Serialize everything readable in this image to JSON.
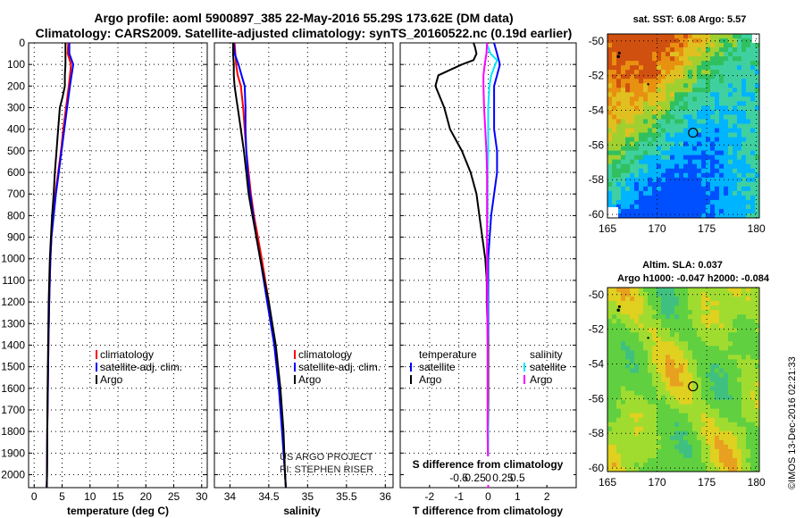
{
  "header": {
    "title_line1": "Argo profile: aoml 5900897_385 22-May-2016 55.29S 173.62E (DM data)",
    "title_line2": "Climatology: CARS2009. Satellite-adjusted climatology: synTS_20160522.nc (0.19d earlier)"
  },
  "depth_ticks": [
    0,
    100,
    200,
    300,
    400,
    500,
    600,
    700,
    800,
    900,
    1000,
    1100,
    1200,
    1300,
    1400,
    1500,
    1600,
    1700,
    1800,
    1900,
    2000
  ],
  "colors": {
    "climatology": "#ff0000",
    "satellite": "#0000ff",
    "argo": "#000000",
    "sat_salinity": "#00e5ff",
    "argo_salinity": "#ff00ff"
  },
  "chart_data": [
    {
      "type": "line",
      "id": "temperature",
      "xlabel": "temperature (deg C)",
      "xlim": [
        -1,
        31
      ],
      "xticks": [
        0,
        5,
        10,
        15,
        20,
        25,
        30
      ],
      "xtick_labels": [
        "0",
        "5",
        "10",
        "15",
        "20",
        "25",
        "30"
      ],
      "ylim": [
        2060,
        0
      ],
      "legend": [
        "climatology",
        "satellite-adj. clim.",
        "Argo"
      ],
      "legend_position": "lower-right",
      "series": [
        {
          "name": "climatology",
          "color": "#ff0000",
          "depth": [
            0,
            50,
            100,
            150,
            200,
            300,
            400,
            500,
            600,
            700,
            800,
            900,
            1000,
            1200,
            1400,
            1600,
            1800,
            2000,
            2060
          ],
          "values": [
            6.1,
            6.0,
            6.6,
            6.4,
            6.2,
            5.7,
            5.2,
            4.8,
            4.3,
            3.8,
            3.4,
            3.1,
            2.9,
            2.7,
            2.55,
            2.45,
            2.35,
            2.3,
            2.25
          ]
        },
        {
          "name": "satellite-adj. clim.",
          "color": "#0000ff",
          "depth": [
            0,
            50,
            100,
            150,
            200,
            300,
            400,
            500,
            600,
            700,
            800,
            900,
            1000,
            1200,
            1400,
            1600,
            1800,
            2000,
            2060
          ],
          "values": [
            6.3,
            6.3,
            7.0,
            6.7,
            6.4,
            5.9,
            5.4,
            4.9,
            4.4,
            3.9,
            3.5,
            3.1,
            2.9,
            2.7,
            2.55,
            2.45,
            2.35,
            2.3,
            2.25
          ]
        },
        {
          "name": "Argo",
          "color": "#000000",
          "depth": [
            0,
            50,
            100,
            150,
            200,
            250,
            300,
            400,
            500,
            600,
            700,
            800,
            900,
            1000,
            1200,
            1400,
            1600,
            1800,
            2000,
            2060
          ],
          "values": [
            5.6,
            5.6,
            5.6,
            5.5,
            5.5,
            5.1,
            4.6,
            4.3,
            4.0,
            3.7,
            3.5,
            3.2,
            3.0,
            2.8,
            2.6,
            2.5,
            2.4,
            2.35,
            2.3,
            2.25
          ]
        }
      ]
    },
    {
      "type": "line",
      "id": "salinity",
      "xlabel": "salinity",
      "xlim": [
        33.8,
        36.1
      ],
      "xticks": [
        34,
        34.5,
        35,
        35.5,
        36
      ],
      "xtick_labels": [
        "34",
        "34.5",
        "35",
        "35.5",
        "36"
      ],
      "ylim": [
        2060,
        0
      ],
      "legend": [
        "climatology",
        "satellite-adj. clim.",
        "Argo"
      ],
      "legend_position": "lower-right",
      "annotations": [
        "US ARGO PROJECT",
        "PI: STEPHEN RISER"
      ],
      "series": [
        {
          "name": "climatology",
          "color": "#ff0000",
          "depth": [
            0,
            50,
            100,
            150,
            200,
            300,
            400,
            500,
            600,
            700,
            800,
            900,
            1000,
            1200,
            1400,
            1600,
            1800,
            2000,
            2060
          ],
          "values": [
            34.06,
            34.07,
            34.08,
            34.1,
            34.14,
            34.17,
            34.19,
            34.21,
            34.24,
            34.27,
            34.31,
            34.36,
            34.41,
            34.5,
            34.58,
            34.64,
            34.68,
            34.71,
            34.72
          ]
        },
        {
          "name": "satellite-adj. clim.",
          "color": "#0000ff",
          "depth": [
            0,
            50,
            100,
            150,
            200,
            300,
            400,
            500,
            600,
            700,
            800,
            900,
            1000,
            1200,
            1400,
            1600,
            1800,
            2000,
            2060
          ],
          "values": [
            34.05,
            34.06,
            34.11,
            34.15,
            34.19,
            34.2,
            34.2,
            34.21,
            34.23,
            34.26,
            34.3,
            34.34,
            34.39,
            34.48,
            34.57,
            34.63,
            34.67,
            34.71,
            34.72
          ]
        },
        {
          "name": "Argo",
          "color": "#000000",
          "depth": [
            0,
            50,
            100,
            150,
            200,
            250,
            300,
            400,
            500,
            600,
            700,
            800,
            900,
            1000,
            1200,
            1400,
            1600,
            1800,
            2000,
            2060
          ],
          "values": [
            34.04,
            34.04,
            34.05,
            34.05,
            34.06,
            34.08,
            34.1,
            34.14,
            34.18,
            34.21,
            34.24,
            34.29,
            34.34,
            34.39,
            34.5,
            34.59,
            34.65,
            34.69,
            34.71,
            34.72
          ]
        }
      ]
    },
    {
      "type": "line",
      "id": "difference",
      "xlabel": "T difference from climatology",
      "xlabel_top": "S difference from climatology",
      "xlim": [
        -3,
        3
      ],
      "xticks": [
        -2,
        -1,
        0,
        1,
        2
      ],
      "xtick_labels": [
        "-2",
        "-1",
        "0",
        "1",
        "2"
      ],
      "xticks_s": [
        -0.5,
        -0.25,
        0,
        0.25,
        0.5
      ],
      "xtick_labels_s": [
        "-0.5",
        "-0.25",
        "0",
        "0.25",
        "0.5"
      ],
      "ylim": [
        2060,
        0
      ],
      "legend_left_title": "temperature",
      "legend_right_title": "salinity",
      "legend": [
        "satellite",
        "Argo",
        "satellite",
        "Argo"
      ],
      "series": [
        {
          "name": "satellite",
          "quantity": "temperature",
          "color": "#0000ff",
          "depth": [
            0,
            50,
            100,
            150,
            200,
            300,
            400,
            500,
            600,
            700,
            800,
            900,
            1000,
            1200,
            1400,
            1600,
            1800,
            2000,
            2060
          ],
          "values": [
            0.2,
            0.3,
            0.4,
            0.3,
            0.2,
            0.2,
            0.2,
            0.3,
            0.3,
            0.2,
            0.1,
            0.05,
            0.0,
            0.0,
            0.0,
            0.0,
            0.0,
            0.0,
            0.0
          ]
        },
        {
          "name": "Argo",
          "quantity": "temperature",
          "color": "#000000",
          "depth": [
            0,
            20,
            50,
            80,
            100,
            150,
            200,
            300,
            400,
            500,
            600,
            700,
            800,
            900,
            1000,
            1100,
            1200,
            1400,
            1600,
            1800,
            2000,
            2060
          ],
          "values": [
            -0.5,
            -0.45,
            -0.4,
            -0.5,
            -0.9,
            -1.7,
            -1.8,
            -1.5,
            -1.3,
            -0.9,
            -0.6,
            -0.4,
            -0.3,
            -0.2,
            -0.1,
            -0.05,
            -0.05,
            0.0,
            0.0,
            0.0,
            0.0,
            0.0
          ]
        },
        {
          "name": "satellite",
          "quantity": "salinity",
          "color": "#00e5ff",
          "depth": [
            0,
            50,
            80,
            100,
            150,
            200,
            300,
            400,
            500,
            600,
            700,
            800,
            900,
            1000,
            1200,
            1400,
            1600,
            1800,
            2000,
            2060
          ],
          "values": [
            -0.03,
            0.04,
            0.15,
            0.12,
            0.05,
            0.02,
            0.0,
            0.0,
            0.0,
            -0.01,
            -0.01,
            -0.01,
            -0.02,
            -0.02,
            -0.01,
            -0.01,
            -0.01,
            0.0,
            0.0,
            0.0
          ]
        },
        {
          "name": "Argo",
          "quantity": "salinity",
          "color": "#ff00ff",
          "depth": [
            0,
            50,
            100,
            150,
            200,
            300,
            400,
            500,
            600,
            700,
            800,
            900,
            1000,
            1200,
            1400,
            1600,
            1800,
            2000,
            2060
          ],
          "values": [
            -0.02,
            -0.03,
            -0.06,
            -0.08,
            -0.08,
            -0.07,
            -0.05,
            -0.03,
            -0.02,
            -0.02,
            -0.02,
            -0.02,
            -0.02,
            -0.02,
            -0.01,
            -0.01,
            -0.01,
            0.0,
            0.0
          ]
        }
      ]
    },
    {
      "type": "heatmap",
      "id": "sst-map",
      "title": "sat. SST: 6.08 Argo: 5.57",
      "xticks": [
        "165",
        "170",
        "175",
        "180"
      ],
      "yticks": [
        "-50",
        "-52",
        "-54",
        "-56",
        "-58",
        "-60"
      ],
      "xlim": [
        165,
        180.3
      ],
      "ylim": [
        -60.2,
        -49.6
      ],
      "profile_marker": {
        "lon": 173.62,
        "lat": -55.29
      }
    },
    {
      "type": "heatmap",
      "id": "sla-map",
      "title": "Altim. SLA: 0.037",
      "subtitle": "Argo h1000: -0.047 h2000: -0.084",
      "xticks": [
        "165",
        "170",
        "175",
        "180"
      ],
      "yticks": [
        "-50",
        "-52",
        "-54",
        "-56",
        "-58",
        "-60"
      ],
      "xlim": [
        165,
        180.3
      ],
      "ylim": [
        -60.2,
        -49.6
      ],
      "profile_marker": {
        "lon": 173.62,
        "lat": -55.29
      }
    }
  ],
  "footer": {
    "stamp": "©IMOS 13-Dec-2016 02:21:33"
  }
}
